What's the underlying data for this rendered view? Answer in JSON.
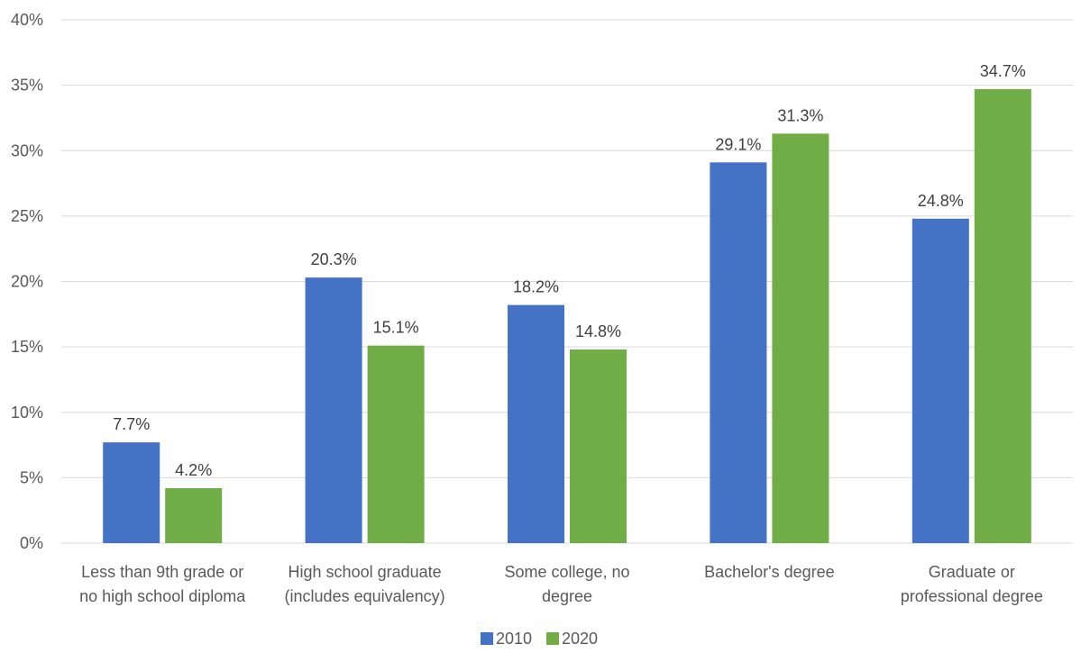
{
  "chart_data": {
    "type": "bar",
    "title": "",
    "xlabel": "",
    "ylabel": "",
    "categories": [
      [
        "Less than 9th grade or",
        "no high school diploma"
      ],
      [
        "High school graduate",
        "(includes equivalency)"
      ],
      [
        "Some college, no",
        "degree"
      ],
      [
        "Bachelor's degree"
      ],
      [
        "Graduate or",
        "professional degree"
      ]
    ],
    "series": [
      {
        "name": "2010",
        "color": "#4472c4",
        "values": [
          7.7,
          20.3,
          18.2,
          29.1,
          24.8
        ]
      },
      {
        "name": "2020",
        "color": "#70ad47",
        "values": [
          4.2,
          15.1,
          14.8,
          31.3,
          34.7
        ]
      }
    ],
    "ylim": [
      0,
      40
    ],
    "yticks": [
      0,
      5,
      10,
      15,
      20,
      25,
      30,
      35,
      40
    ],
    "value_format": "percent_1dp",
    "tick_format": "percent_0dp",
    "grid": true,
    "legend_position": "bottom-center"
  }
}
